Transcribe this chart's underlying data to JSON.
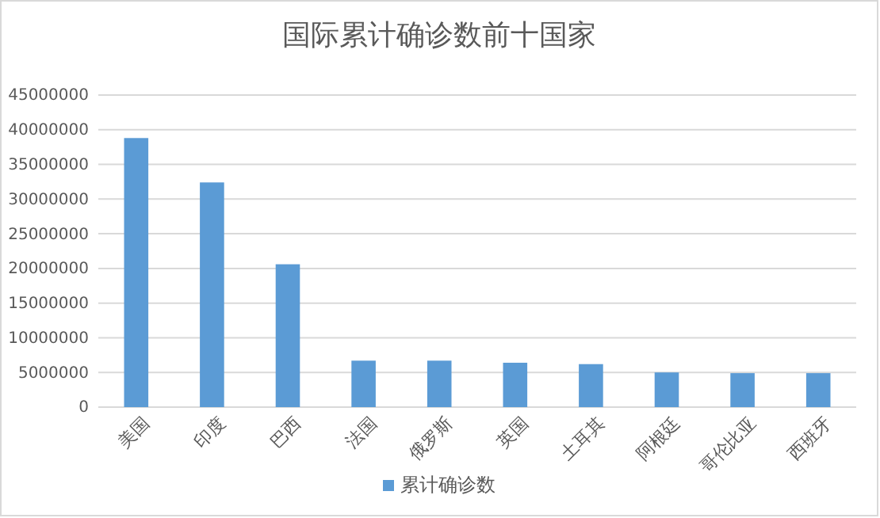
{
  "chart_data": {
    "type": "bar",
    "title": "国际累计确诊数前十国家",
    "categories": [
      "美国",
      "印度",
      "巴西",
      "法国",
      "俄罗斯",
      "英国",
      "土耳其",
      "阿根廷",
      "哥伦比亚",
      "西班牙"
    ],
    "series": [
      {
        "name": "累计确诊数",
        "color": "#5b9bd5",
        "values": [
          38800000,
          32400000,
          20600000,
          6700000,
          6700000,
          6400000,
          6200000,
          5000000,
          4900000,
          4900000
        ]
      }
    ],
    "ylim": [
      0,
      45000000
    ],
    "yticks": [
      0,
      5000000,
      10000000,
      15000000,
      20000000,
      25000000,
      30000000,
      35000000,
      40000000,
      45000000
    ],
    "grid": "y",
    "legend": "bottom"
  }
}
